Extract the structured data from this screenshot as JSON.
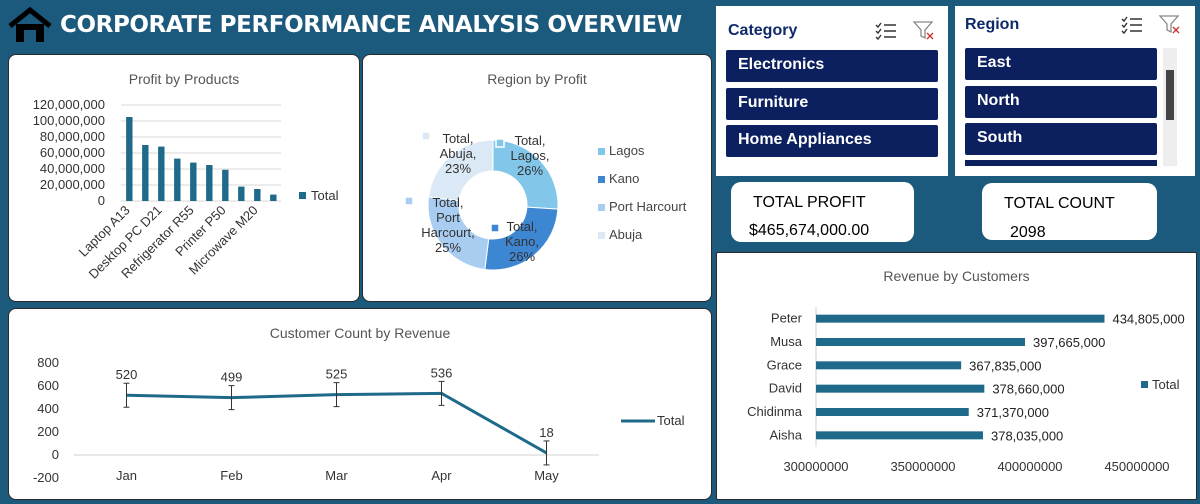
{
  "header": {
    "title": "CORPORATE PERFORMANCE ANALYSIS OVERVIEW",
    "icon": "home-icon"
  },
  "slicers": {
    "category": {
      "title": "Category",
      "items": [
        "Electronics",
        "Furniture",
        "Home Appliances"
      ]
    },
    "region": {
      "title": "Region",
      "items": [
        "East",
        "North",
        "South"
      ]
    }
  },
  "kpis": {
    "total_profit": {
      "label": "TOTAL PROFIT",
      "value": "$465,674,000.00"
    },
    "total_count": {
      "label": "TOTAL COUNT",
      "value": "2098"
    }
  },
  "colors": {
    "bar": "#1f6a8a",
    "line": "#1f6a8a",
    "header": "#1b5a7c",
    "slicer_item": "#0c1f5e"
  },
  "chart_data": [
    {
      "id": "profit-by-products",
      "type": "bar",
      "title": "Profit by Products",
      "ylim": [
        0,
        120000000
      ],
      "yticks": [
        "120,000,000",
        "100,000,000",
        "80,000,000",
        "60,000,000",
        "40,000,000",
        "20,000,000",
        "0"
      ],
      "x_tick_labels": [
        "Laptop A13",
        "Desktop PC D21",
        "Refrigerator R55",
        "Printer P50",
        "Microwave M20"
      ],
      "values": [
        105000000,
        70000000,
        68000000,
        53000000,
        48000000,
        45000000,
        39000000,
        18000000,
        15000000,
        8000000
      ],
      "legend": [
        "Total"
      ]
    },
    {
      "id": "region-by-profit",
      "type": "pie",
      "title": "Region by Profit",
      "slices": [
        {
          "name": "Lagos",
          "value": 26,
          "label": [
            "Total,",
            "Lagos,",
            "26%"
          ],
          "color": "#82c6ea"
        },
        {
          "name": "Kano",
          "value": 26,
          "label": [
            "Total,",
            "Kano,",
            "26%"
          ],
          "color": "#3d86d2"
        },
        {
          "name": "Port Harcourt",
          "value": 25,
          "label": [
            "Total,",
            "Port",
            "Harcourt,",
            "25%"
          ],
          "color": "#a9cdf0"
        },
        {
          "name": "Abuja",
          "value": 23,
          "label": [
            "Total,",
            "Abuja,",
            "23%"
          ],
          "color": "#dbe8f5"
        }
      ],
      "legend": [
        "Lagos",
        "Kano",
        "Port Harcourt",
        "Abuja"
      ]
    },
    {
      "id": "customer-count-by-revenue",
      "type": "line",
      "title": "Customer Count by Revenue",
      "categories": [
        "Jan",
        "Feb",
        "Mar",
        "Apr",
        "May"
      ],
      "values": [
        520,
        499,
        525,
        536,
        18
      ],
      "value_labels": [
        "520",
        "499",
        "525",
        "536",
        "18"
      ],
      "ylim": [
        -200,
        800
      ],
      "yticks": [
        "800",
        "600",
        "400",
        "200",
        "0",
        "-200"
      ],
      "legend": [
        "Total"
      ]
    },
    {
      "id": "revenue-by-customers",
      "type": "bar",
      "orientation": "horizontal",
      "title": "Revenue by Customers",
      "categories": [
        "Peter",
        "Musa",
        "Grace",
        "David",
        "Chidinma",
        "Aisha"
      ],
      "values": [
        434805000,
        397665000,
        367835000,
        378660000,
        371370000,
        378035000
      ],
      "value_labels": [
        "434,805,000",
        "397,665,000",
        "367,835,000",
        "378,660,000",
        "371,370,000",
        "378,035,000"
      ],
      "xlim": [
        300000000,
        450000000
      ],
      "xticks": [
        "300000000",
        "350000000",
        "400000000",
        "450000000"
      ],
      "legend": [
        "Total"
      ]
    }
  ]
}
